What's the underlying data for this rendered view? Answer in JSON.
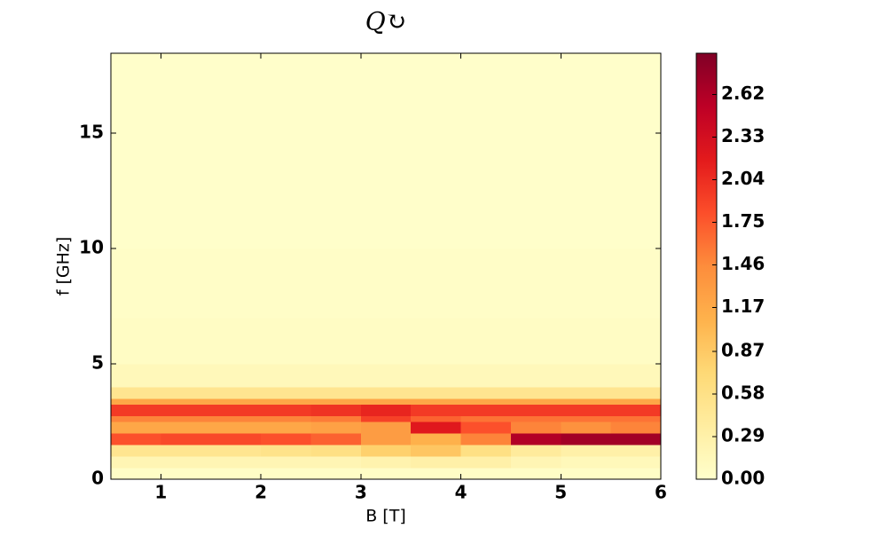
{
  "chart_data": {
    "type": "heatmap",
    "title": "Q↻",
    "x_label": "B [T]",
    "y_label": "f [GHz]",
    "x_bins": [
      0.5,
      1,
      1.5,
      2,
      2.5,
      3,
      3.5,
      4,
      4.5,
      5,
      5.5,
      6
    ],
    "y_bins": [
      0,
      0.5,
      1,
      1.5,
      2,
      2.5,
      2.75,
      3.25,
      3.5,
      4,
      5,
      7,
      10,
      18.46
    ],
    "z": [
      [
        0.05,
        0.05,
        0.05,
        0.05,
        0.05,
        0.05,
        0.05,
        0.05,
        0.05,
        0.05,
        0.05
      ],
      [
        0.2,
        0.2,
        0.2,
        0.2,
        0.2,
        0.25,
        0.3,
        0.3,
        0.2,
        0.15,
        0.15
      ],
      [
        0.5,
        0.5,
        0.5,
        0.55,
        0.6,
        0.8,
        0.9,
        0.6,
        0.4,
        0.3,
        0.3
      ],
      [
        1.8,
        1.85,
        1.85,
        1.8,
        1.7,
        1.3,
        1.1,
        1.5,
        2.6,
        2.7,
        2.7
      ],
      [
        1.2,
        1.2,
        1.2,
        1.2,
        1.25,
        1.3,
        2.2,
        1.8,
        1.5,
        1.4,
        1.5
      ],
      [
        1.5,
        1.5,
        1.5,
        1.5,
        1.55,
        1.9,
        1.7,
        1.6,
        1.6,
        1.6,
        1.6
      ],
      [
        1.95,
        1.95,
        1.95,
        1.95,
        2.0,
        2.1,
        1.95,
        1.95,
        1.95,
        1.95,
        1.95
      ],
      [
        1.2,
        1.2,
        1.2,
        1.2,
        1.2,
        1.2,
        1.2,
        1.2,
        1.2,
        1.2,
        1.2
      ],
      [
        0.5,
        0.5,
        0.5,
        0.5,
        0.5,
        0.5,
        0.5,
        0.5,
        0.5,
        0.5,
        0.5
      ],
      [
        0.15,
        0.15,
        0.15,
        0.15,
        0.15,
        0.15,
        0.15,
        0.15,
        0.15,
        0.15,
        0.15
      ],
      [
        0.07,
        0.07,
        0.07,
        0.07,
        0.07,
        0.07,
        0.07,
        0.07,
        0.07,
        0.07,
        0.07
      ],
      [
        0.04,
        0.04,
        0.04,
        0.04,
        0.04,
        0.04,
        0.04,
        0.04,
        0.04,
        0.04,
        0.04
      ],
      [
        0.02,
        0.02,
        0.02,
        0.02,
        0.02,
        0.02,
        0.02,
        0.02,
        0.02,
        0.02,
        0.02
      ]
    ],
    "xlim": [
      0.5,
      6
    ],
    "xticks": [
      1,
      2,
      3,
      4,
      5,
      6
    ],
    "ylim": [
      0,
      18.46
    ],
    "yticks": [
      0,
      5,
      10,
      15
    ],
    "colormap": "YlOrRd",
    "clim": [
      0,
      2.9
    ],
    "cticks": [
      {
        "value": 0,
        "label": "0.00"
      },
      0.29,
      0.58,
      0.87,
      1.17,
      1.46,
      1.75,
      2.04,
      2.33,
      2.62
    ]
  }
}
